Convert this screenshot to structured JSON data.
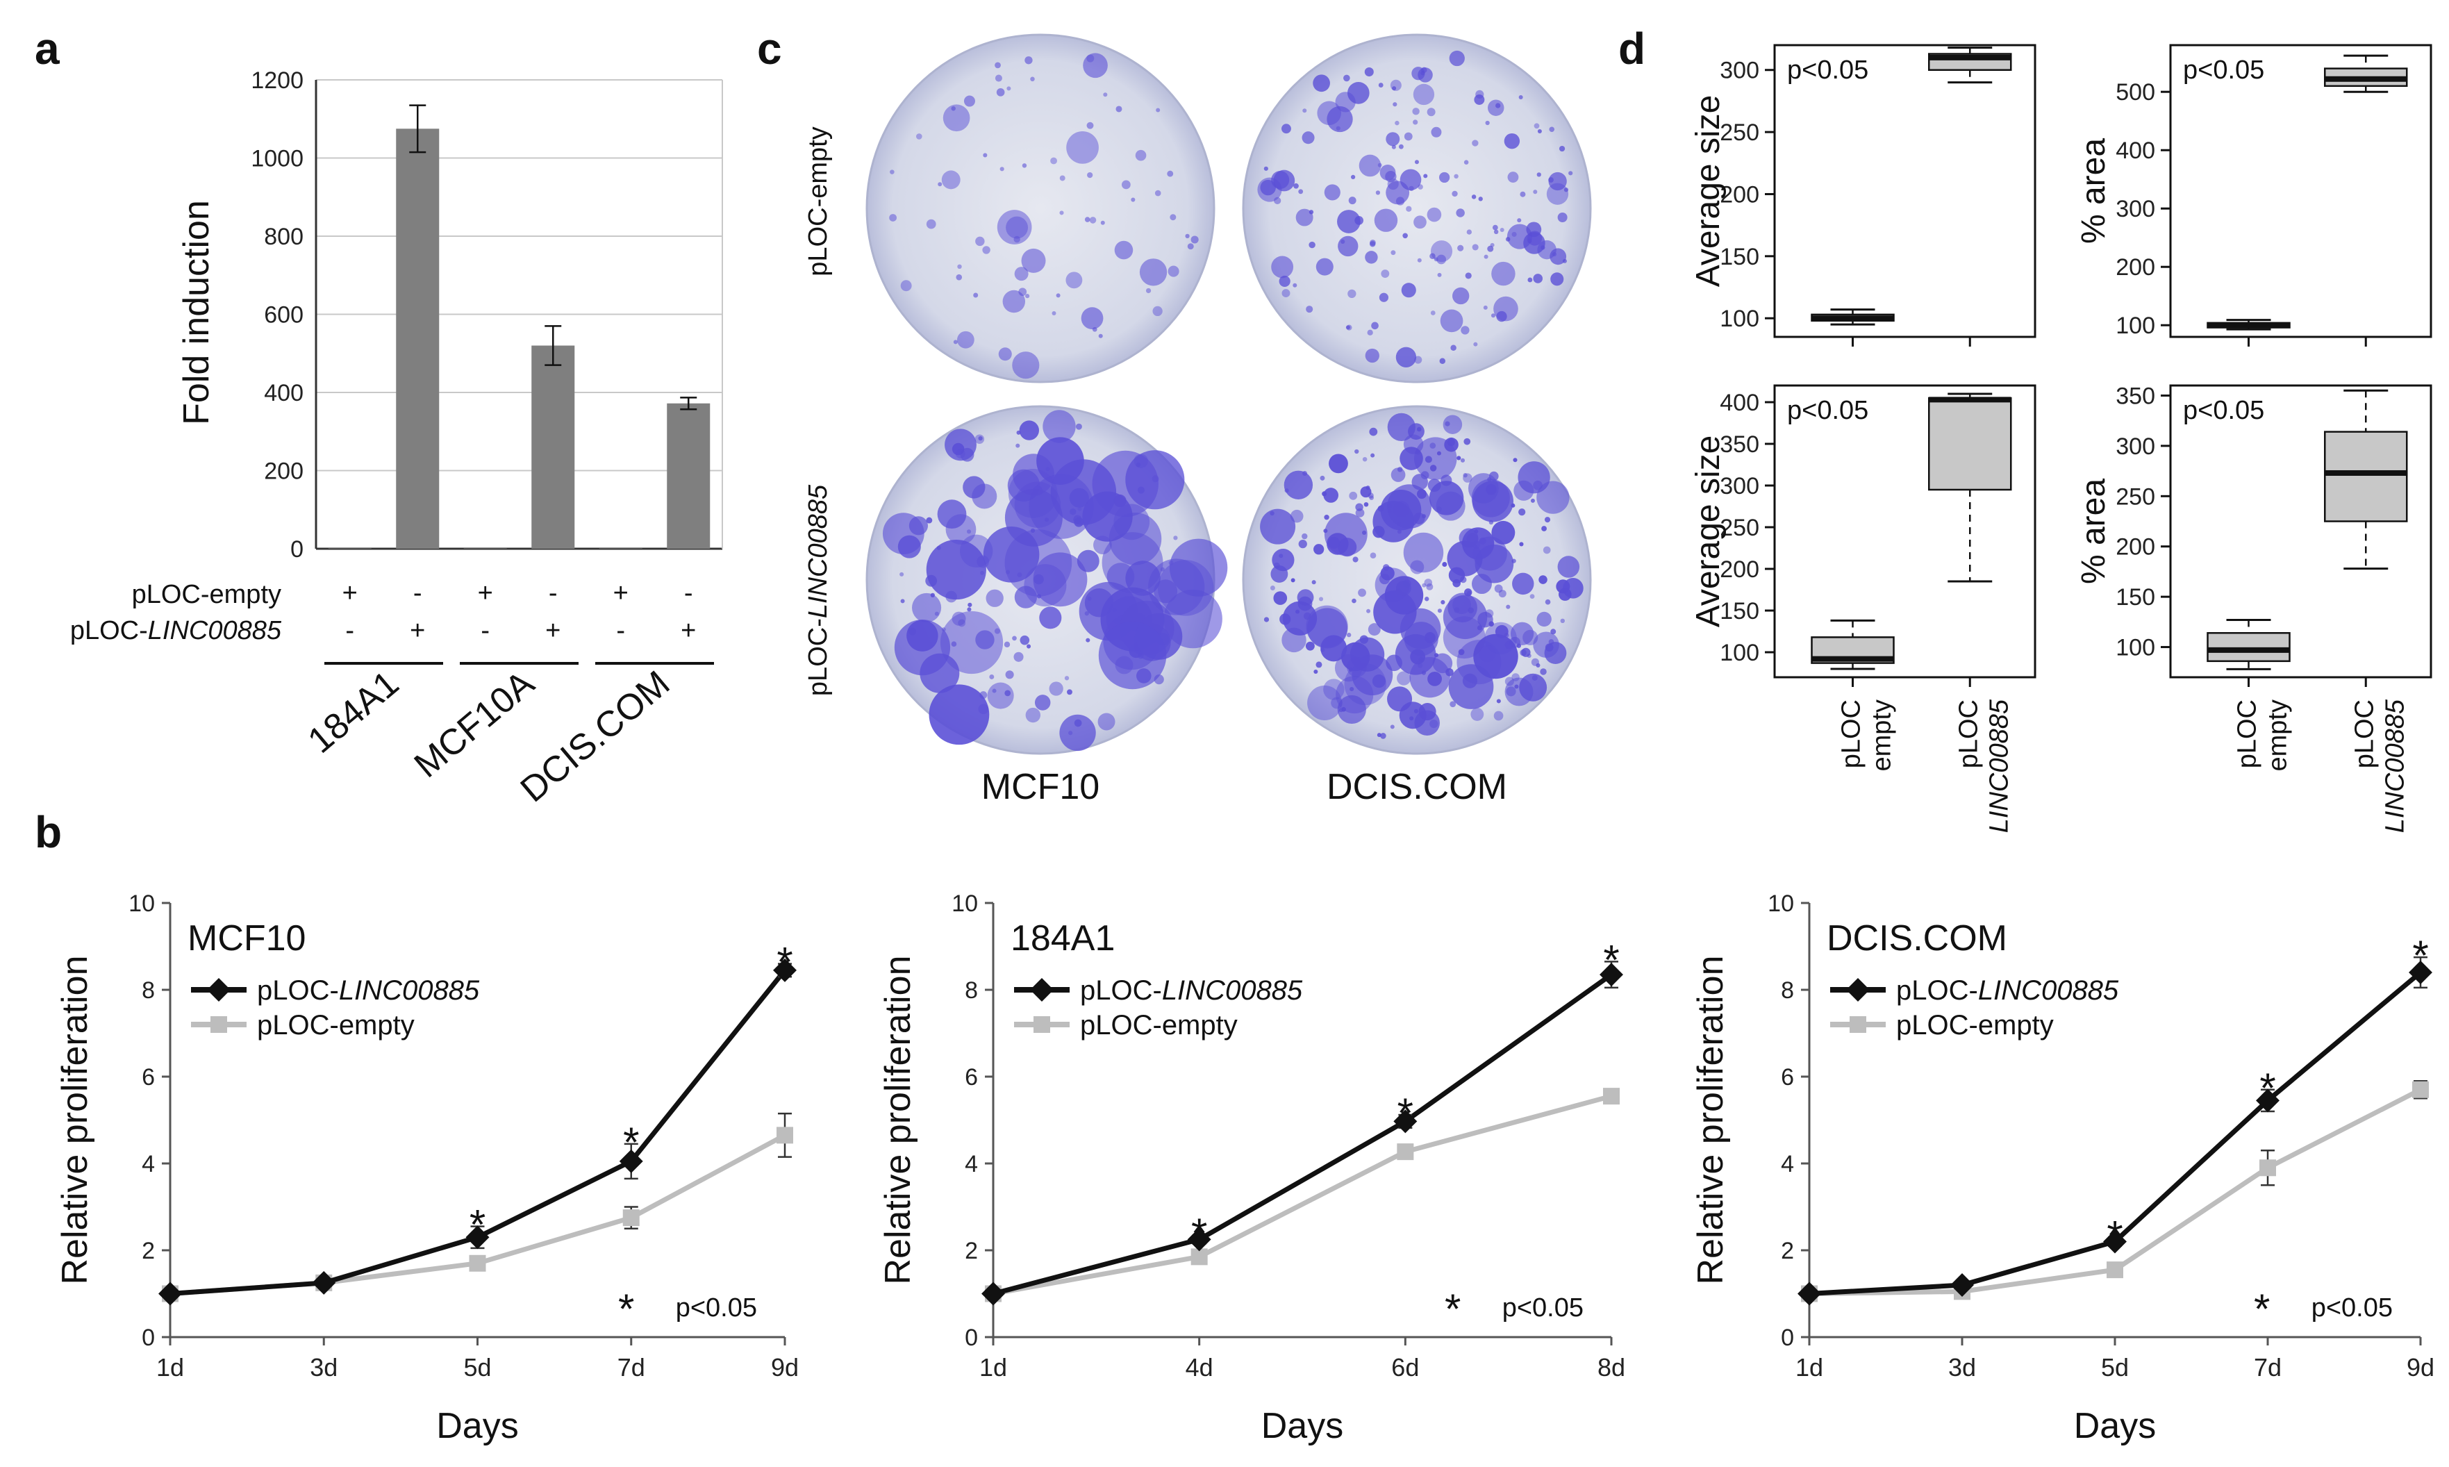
{
  "panel_labels": {
    "a": "a",
    "b": "b",
    "c": "c",
    "d": "d"
  },
  "chart_data": [
    {
      "id": "a",
      "type": "bar",
      "ylabel": "Fold induction",
      "ylim": [
        0,
        1200
      ],
      "yticks": [
        "0",
        "200",
        "400",
        "600",
        "800",
        "1000",
        "1200"
      ],
      "row_labels": [
        "pLOC-empty",
        "pLOC-",
        "LINC00885"
      ],
      "conditions_empty": [
        "+",
        "-",
        "+",
        "-",
        "+",
        "-"
      ],
      "conditions_linc": [
        "-",
        "+",
        "-",
        "+",
        "-",
        "+"
      ],
      "groups": [
        "184A1",
        "MCF10A",
        "DCIS.COM"
      ],
      "values": [
        1,
        1075,
        1,
        520,
        1,
        372
      ],
      "errors": [
        0,
        60,
        0,
        50,
        0,
        15
      ],
      "bar_color": "#7f7f7f"
    },
    {
      "id": "c",
      "type": "image_grid",
      "row_labels": [
        "pLOC-empty",
        "pLOC-",
        "LINC00885"
      ],
      "col_labels": [
        "MCF10",
        "DCIS.COM"
      ],
      "dish_color": "#5a4fd6"
    },
    {
      "id": "d",
      "type": "box",
      "p_label": "p<0.05",
      "x_labels_line1": [
        "pLOC",
        "pLOC"
      ],
      "x_labels_line2": [
        "empty",
        "LINC00885"
      ],
      "plots": [
        {
          "ylabel": "Average size",
          "ylim": [
            85,
            320
          ],
          "yticks": [
            "100",
            "150",
            "200",
            "250",
            "300"
          ],
          "boxes": [
            {
              "whislo": 95,
              "q1": 98,
              "med": 100,
              "q3": 103,
              "whishi": 107
            },
            {
              "whislo": 290,
              "q1": 300,
              "med": 310,
              "q3": 313,
              "whishi": 318
            }
          ]
        },
        {
          "ylabel": "% area",
          "ylim": [
            80,
            580
          ],
          "yticks": [
            "100",
            "200",
            "300",
            "400",
            "500"
          ],
          "boxes": [
            {
              "whislo": 93,
              "q1": 96,
              "med": 100,
              "q3": 104,
              "whishi": 109
            },
            {
              "whislo": 500,
              "q1": 510,
              "med": 522,
              "q3": 540,
              "whishi": 562
            }
          ]
        },
        {
          "ylabel": "Average size",
          "ylim": [
            70,
            420
          ],
          "yticks": [
            "100",
            "150",
            "200",
            "250",
            "300",
            "350",
            "400"
          ],
          "boxes": [
            {
              "whislo": 80,
              "q1": 87,
              "med": 92,
              "q3": 118,
              "whishi": 138
            },
            {
              "whislo": 185,
              "q1": 295,
              "med": 403,
              "q3": 405,
              "whishi": 410
            }
          ]
        },
        {
          "ylabel": "% area",
          "ylim": [
            70,
            360
          ],
          "yticks": [
            "100",
            "150",
            "200",
            "250",
            "300",
            "350"
          ],
          "boxes": [
            {
              "whislo": 78,
              "q1": 86,
              "med": 97,
              "q3": 114,
              "whishi": 127
            },
            {
              "whislo": 178,
              "q1": 225,
              "med": 273,
              "q3": 314,
              "whishi": 355
            }
          ]
        }
      ]
    },
    {
      "id": "b",
      "type": "line",
      "xlabel": "Days",
      "ylabel": "Relative proliferation",
      "ylim": [
        0,
        10
      ],
      "yticks": [
        "0",
        "2",
        "4",
        "6",
        "8",
        "10"
      ],
      "legend_prefix": "pLOC-",
      "legend_italic": "LINC00885",
      "legend_empty": "pLOC-empty",
      "p_note": "p<0.05",
      "star": "*",
      "colors": {
        "linc": "#111111",
        "empty": "#bdbdbd"
      },
      "plots": [
        {
          "title": "MCF10",
          "x": [
            "1d",
            "3d",
            "5d",
            "7d",
            "9d"
          ],
          "linc": [
            1.0,
            1.25,
            2.3,
            4.05,
            8.45
          ],
          "linc_err": [
            0.05,
            0.05,
            0.25,
            0.4,
            0.15
          ],
          "empty": [
            1.0,
            1.25,
            1.7,
            2.75,
            4.65
          ],
          "empty_err": [
            0.05,
            0.05,
            0.15,
            0.25,
            0.5
          ],
          "stars": [
            false,
            false,
            true,
            true,
            true
          ]
        },
        {
          "title": "184A1",
          "x": [
            "1d",
            "4d",
            "6d",
            "8d"
          ],
          "linc": [
            1.0,
            2.25,
            4.97,
            8.35
          ],
          "linc_err": [
            0.05,
            0.1,
            0.15,
            0.3
          ],
          "empty": [
            1.0,
            1.85,
            4.27,
            5.55
          ],
          "empty_err": [
            0.05,
            0.1,
            0.15,
            0.15
          ],
          "stars": [
            false,
            true,
            true,
            true
          ]
        },
        {
          "title": "DCIS.COM",
          "x": [
            "1d",
            "3d",
            "5d",
            "7d",
            "9d"
          ],
          "linc": [
            1.0,
            1.2,
            2.2,
            5.45,
            8.4
          ],
          "linc_err": [
            0.05,
            0.05,
            0.1,
            0.25,
            0.35
          ],
          "empty": [
            1.0,
            1.05,
            1.55,
            3.9,
            5.7
          ],
          "empty_err": [
            0.05,
            0.05,
            0.15,
            0.4,
            0.2
          ],
          "stars": [
            false,
            false,
            true,
            true,
            true
          ]
        }
      ]
    }
  ]
}
